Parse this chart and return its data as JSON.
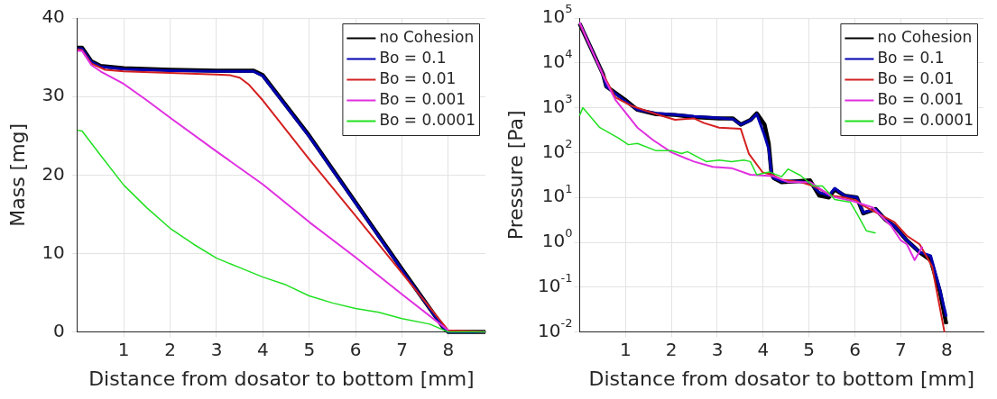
{
  "chart_data": [
    {
      "type": "line",
      "xlabel": "Distance from dosator to bottom [mm]",
      "ylabel": "Mass [mg]",
      "xlim": [
        0,
        8.8
      ],
      "xticks": [
        1,
        2,
        3,
        4,
        5,
        6,
        7,
        8
      ],
      "ylim": [
        0,
        40
      ],
      "yticks": [
        0,
        10,
        20,
        30,
        40
      ],
      "grid": true,
      "legend": "top right",
      "line_style": "solid",
      "marker": "none",
      "series": [
        {
          "name": "no Cohesion",
          "color": "#000000",
          "x": [
            0,
            0.1,
            0.3,
            0.5,
            1,
            2,
            3,
            3.8,
            4,
            5,
            6,
            7,
            7.9,
            8,
            8.8
          ],
          "values": [
            36.2,
            36.2,
            34.5,
            33.9,
            33.6,
            33.4,
            33.3,
            33.3,
            32.7,
            25,
            16.5,
            8,
            0.5,
            0,
            0
          ]
        },
        {
          "name": "Bo = 0.1",
          "color": "#0000b0",
          "x": [
            0,
            0.1,
            0.3,
            0.5,
            1,
            2,
            3,
            3.8,
            4,
            5,
            6,
            7,
            7.9,
            8,
            8.8
          ],
          "values": [
            36.1,
            36.1,
            34.4,
            33.8,
            33.5,
            33.3,
            33.2,
            33.2,
            32.6,
            24.9,
            16.4,
            7.9,
            0.5,
            0,
            0
          ]
        },
        {
          "name": "Bo = 0.01",
          "color": "#d42020",
          "x": [
            0,
            0.1,
            0.3,
            0.6,
            1,
            2,
            3,
            3.3,
            3.5,
            3.7,
            4,
            5,
            6,
            7,
            8,
            8.8
          ],
          "values": [
            36,
            35.9,
            34.2,
            33.4,
            33.2,
            33,
            32.8,
            32.7,
            32.4,
            31.5,
            29.5,
            22,
            14.8,
            7.5,
            0.2,
            0
          ]
        },
        {
          "name": "Bo = 0.001",
          "color": "#e030e0",
          "x": [
            0,
            0.1,
            0.3,
            0.5,
            1,
            1.5,
            2,
            3,
            4,
            5,
            6,
            7,
            8
          ],
          "values": [
            35.8,
            35.8,
            34,
            33.2,
            31.6,
            29.5,
            27.3,
            23,
            18.8,
            14,
            9.5,
            4.8,
            0.2
          ]
        },
        {
          "name": "Bo = 0.0001",
          "color": "#20e020",
          "x": [
            0,
            0.1,
            0.5,
            1,
            1.5,
            2,
            2.5,
            3,
            3.5,
            4,
            4.5,
            5,
            5.5,
            6,
            6.5,
            7,
            7.6,
            8,
            8.8
          ],
          "values": [
            25.7,
            25.6,
            22.5,
            18.7,
            15.8,
            13.2,
            11.2,
            9.4,
            8.2,
            7,
            6,
            4.6,
            3.7,
            3,
            2.5,
            1.7,
            1,
            0,
            0
          ]
        }
      ]
    },
    {
      "type": "line",
      "xlabel": "Distance from dosator to bottom [mm]",
      "ylabel": "Pressure [Pa]",
      "xlim": [
        0,
        8.8
      ],
      "xticks": [
        1,
        2,
        3,
        4,
        5,
        6,
        7,
        8
      ],
      "ylim": [
        0.01,
        100000
      ],
      "log": "y",
      "yticks": [
        {
          "value": 0.01,
          "label": "10$^{-2}$"
        },
        {
          "value": 0.1,
          "label": "10$^{-1}$"
        },
        {
          "value": 1,
          "label": "10$^{0}$"
        },
        {
          "value": 10,
          "label": "10$^{1}$"
        },
        {
          "value": 100,
          "label": "10$^{2}$"
        },
        {
          "value": 1000,
          "label": "10$^{3}$"
        },
        {
          "value": 10000,
          "label": "10$^{4}$"
        },
        {
          "value": 100000,
          "label": "10$^{5}$"
        }
      ],
      "grid": true,
      "legend": "top right",
      "line_style": "solid",
      "marker": "none",
      "series": [
        {
          "name": "no Cohesion",
          "color": "#000000",
          "x": [
            0,
            0.51,
            0.58,
            0.99,
            1.26,
            1.67,
            2.08,
            2.49,
            3.04,
            3.34,
            3.51,
            3.72,
            3.86,
            4.03,
            4.12,
            4.18,
            4.23,
            4.4,
            4.74,
            5.02,
            5.22,
            5.43,
            5.56,
            5.77,
            6.04,
            6.18,
            6.45,
            6.66,
            6.86,
            7.13,
            7.41,
            7.65,
            7.85,
            7.99
          ],
          "values": [
            75000,
            5600,
            3000,
            1500,
            900,
            720,
            690,
            620,
            580,
            580,
            420,
            530,
            750,
            420,
            160,
            34,
            27,
            22,
            23,
            24,
            11,
            10,
            15,
            11,
            10,
            4.4,
            5.5,
            3.2,
            2.3,
            1.1,
            0.6,
            0.4,
            0.08,
            0.015
          ]
        },
        {
          "name": "Bo = 0.1",
          "color": "#0000b0",
          "x": [
            0,
            0.51,
            0.58,
            0.99,
            1.26,
            1.67,
            2.08,
            2.49,
            3.04,
            3.34,
            3.51,
            3.72,
            3.86,
            4.03,
            4.12,
            4.18,
            4.23,
            4.4,
            4.74,
            5.02,
            5.22,
            5.43,
            5.56,
            5.77,
            6.04,
            6.18,
            6.45,
            6.66,
            6.86,
            7.13,
            7.41,
            7.65,
            7.85,
            7.99
          ],
          "values": [
            75000,
            5600,
            3000,
            1400,
            900,
            750,
            700,
            640,
            590,
            560,
            420,
            520,
            720,
            240,
            120,
            34,
            27,
            23,
            23,
            21,
            13,
            11,
            16,
            11,
            10,
            4.6,
            5.5,
            3.3,
            2.3,
            1.1,
            0.6,
            0.5,
            0.09,
            0.022
          ]
        },
        {
          "name": "Bo = 0.01",
          "color": "#d42020",
          "x": [
            0,
            0.51,
            0.78,
            1.13,
            1.67,
            2.08,
            2.49,
            2.7,
            3.04,
            3.51,
            3.69,
            3.99,
            4.2,
            4.4,
            4.81,
            5.09,
            5.49,
            5.77,
            6.04,
            6.11,
            6.45,
            6.86,
            7.13,
            7.41,
            7.68,
            7.95
          ],
          "values": [
            75000,
            5600,
            1700,
            1100,
            720,
            540,
            580,
            460,
            360,
            340,
            93,
            36,
            32,
            25,
            22,
            18,
            11,
            10,
            8.5,
            7.2,
            4.7,
            2.8,
            1.4,
            0.9,
            0.29,
            0.01
          ]
        },
        {
          "name": "Bo = 0.001",
          "color": "#e030e0",
          "x": [
            0,
            0.51,
            0.78,
            1.26,
            1.6,
            2.01,
            2.49,
            2.9,
            3.31,
            3.72,
            4.2,
            4.54,
            5.02,
            5.49,
            5.97,
            6.38,
            6.79,
            7,
            7.13,
            7.3,
            7.47
          ],
          "values": [
            80000,
            5200,
            1500,
            360,
            190,
            100,
            63,
            48,
            45,
            32,
            30,
            22,
            22,
            10.5,
            8.2,
            6,
            2.3,
            1.1,
            0.9,
            0.4,
            0.8
          ]
        },
        {
          "name": "Bo = 0.0001",
          "color": "#20e020",
          "x": [
            0,
            0.07,
            0.44,
            0.85,
            1.06,
            1.26,
            1.67,
            2.01,
            2.22,
            2.35,
            2.76,
            3.04,
            3.31,
            3.58,
            3.72,
            3.86,
            4.13,
            4.4,
            4.54,
            4.81,
            5.09,
            5.29,
            5.56,
            5.9,
            6.04,
            6.25,
            6.45
          ],
          "values": [
            670,
            1000,
            360,
            210,
            150,
            160,
            110,
            110,
            95,
            105,
            63,
            68,
            63,
            68,
            63,
            32,
            37,
            29,
            43,
            31,
            18,
            18,
            9,
            7.8,
            4.4,
            1.8,
            1.6
          ]
        }
      ]
    }
  ]
}
